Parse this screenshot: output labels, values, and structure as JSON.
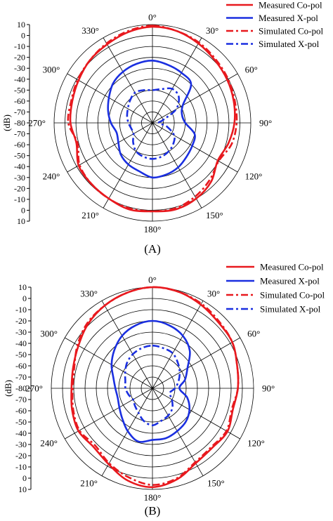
{
  "chart_data": [
    {
      "type": "polar-line",
      "panel_label": "(A)",
      "ylabel": "(dB)",
      "r_ticks": [
        "10",
        "0",
        "-10",
        "-20",
        "-30",
        "-40",
        "-50",
        "-60",
        "-70",
        "-80",
        "-70",
        "-60",
        "-50",
        "-40",
        "-30",
        "-20",
        "-10",
        "0",
        "10"
      ],
      "rlim": [
        -80,
        10
      ],
      "angle_labels": [
        "0°",
        "30°",
        "60°",
        "90°",
        "120°",
        "150°",
        "180°",
        "210°",
        "240°",
        "270°",
        "300°",
        "330°"
      ],
      "grid": true,
      "legend_position": "top-right",
      "series": [
        {
          "name": "Measured Co-pol",
          "color": "#e8191e",
          "style": "solid",
          "angles": [
            0,
            15,
            30,
            45,
            60,
            75,
            90,
            105,
            120,
            135,
            150,
            165,
            180,
            195,
            210,
            225,
            240,
            255,
            270,
            285,
            300,
            315,
            330,
            345
          ],
          "values": [
            8,
            7,
            4,
            1,
            -1,
            -3,
            -5,
            -8,
            -11,
            -4,
            0,
            2,
            1,
            2,
            0,
            -1,
            -2,
            -8,
            -5,
            -4,
            -2,
            1,
            3,
            6
          ]
        },
        {
          "name": "Measured X-pol",
          "color": "#1a2fe0",
          "style": "solid",
          "angles": [
            0,
            15,
            30,
            45,
            60,
            75,
            90,
            105,
            120,
            135,
            150,
            165,
            180,
            195,
            210,
            225,
            240,
            255,
            270,
            285,
            300,
            315,
            330,
            345
          ],
          "values": [
            -23,
            -25,
            -27,
            -30,
            -48,
            -52,
            -50,
            -40,
            -38,
            -36,
            -33,
            -31,
            -30,
            -34,
            -36,
            -39,
            -44,
            -46,
            -42,
            -38,
            -34,
            -29,
            -26,
            -24
          ]
        },
        {
          "name": "Simulated Co-pol",
          "color": "#e8191e",
          "style": "dashdot",
          "angles": [
            0,
            15,
            30,
            45,
            60,
            75,
            90,
            105,
            120,
            135,
            150,
            165,
            180,
            195,
            210,
            225,
            240,
            255,
            270,
            285,
            300,
            315,
            330,
            345
          ],
          "values": [
            9,
            7,
            5,
            2,
            0,
            -2,
            -3,
            -5,
            -10,
            -6,
            -2,
            1,
            1,
            1,
            0,
            -1,
            -3,
            -9,
            -3,
            -3,
            -1,
            1,
            4,
            7
          ]
        },
        {
          "name": "Simulated X-pol",
          "color": "#1a2fe0",
          "style": "dashdot",
          "angles": [
            0,
            15,
            30,
            45,
            60,
            75,
            90,
            105,
            120,
            135,
            150,
            165,
            180,
            195,
            210,
            225,
            240,
            255,
            270,
            285,
            300,
            315,
            330,
            345
          ],
          "values": [
            -50,
            -48,
            -44,
            -46,
            -55,
            -70,
            -74,
            -66,
            -57,
            -53,
            -50,
            -48,
            -47,
            -48,
            -50,
            -55,
            -60,
            -60,
            -58,
            -56,
            -54,
            -51,
            -48,
            -49
          ]
        }
      ]
    },
    {
      "type": "polar-line",
      "panel_label": "(B)",
      "ylabel": "(dB)",
      "r_ticks": [
        "10",
        "0",
        "-10",
        "-20",
        "-30",
        "-40",
        "-50",
        "-60",
        "-70",
        "-80",
        "-70",
        "-60",
        "-50",
        "-40",
        "-30",
        "-20",
        "-10",
        "0",
        "10"
      ],
      "rlim": [
        -80,
        10
      ],
      "angle_labels": [
        "0°",
        "30°",
        "60°",
        "90°",
        "120°",
        "150°",
        "180°",
        "210°",
        "240°",
        "270°",
        "300°",
        "330°"
      ],
      "grid": true,
      "legend_position": "top-right",
      "series": [
        {
          "name": "Measured Co-pol",
          "color": "#e8191e",
          "style": "solid",
          "angles": [
            0,
            15,
            30,
            45,
            60,
            75,
            90,
            105,
            120,
            135,
            150,
            165,
            180,
            195,
            210,
            225,
            240,
            255,
            270,
            285,
            300,
            315,
            330,
            345
          ],
          "values": [
            10,
            9,
            6,
            3,
            2,
            -2,
            -4,
            -6,
            -3,
            -5,
            -3,
            4,
            8,
            5,
            -2,
            -6,
            -4,
            -6,
            -8,
            -7,
            -4,
            1,
            5,
            8
          ]
        },
        {
          "name": "Measured X-pol",
          "color": "#1a2fe0",
          "style": "solid",
          "angles": [
            0,
            15,
            30,
            45,
            60,
            75,
            90,
            105,
            120,
            135,
            150,
            165,
            180,
            195,
            210,
            225,
            240,
            255,
            270,
            285,
            300,
            315,
            330,
            345
          ],
          "values": [
            -20,
            -22,
            -26,
            -33,
            -44,
            -50,
            -56,
            -48,
            -42,
            -38,
            -36,
            -34,
            -34,
            -31,
            -36,
            -42,
            -46,
            -48,
            -47,
            -44,
            -38,
            -32,
            -26,
            -22
          ]
        },
        {
          "name": "Simulated Co-pol",
          "color": "#e8191e",
          "style": "dashdot",
          "angles": [
            0,
            15,
            30,
            45,
            60,
            75,
            90,
            105,
            120,
            135,
            150,
            165,
            180,
            195,
            210,
            225,
            240,
            255,
            270,
            285,
            300,
            315,
            330,
            345
          ],
          "values": [
            10,
            9,
            7,
            4,
            2,
            -2,
            -4,
            -7,
            -4,
            -6,
            -4,
            3,
            6,
            2,
            -3,
            -8,
            -5,
            -7,
            -9,
            -8,
            -3,
            2,
            5,
            8
          ]
        },
        {
          "name": "Simulated X-pol",
          "color": "#1a2fe0",
          "style": "dashdot",
          "angles": [
            0,
            15,
            30,
            45,
            60,
            75,
            90,
            105,
            120,
            135,
            150,
            165,
            180,
            195,
            210,
            225,
            240,
            255,
            270,
            285,
            300,
            315,
            330,
            345
          ],
          "values": [
            -42,
            -43,
            -44,
            -48,
            -52,
            -56,
            -60,
            -64,
            -60,
            -55,
            -52,
            -50,
            -47,
            -50,
            -55,
            -58,
            -60,
            -58,
            -56,
            -55,
            -52,
            -48,
            -45,
            -43
          ]
        }
      ]
    }
  ]
}
